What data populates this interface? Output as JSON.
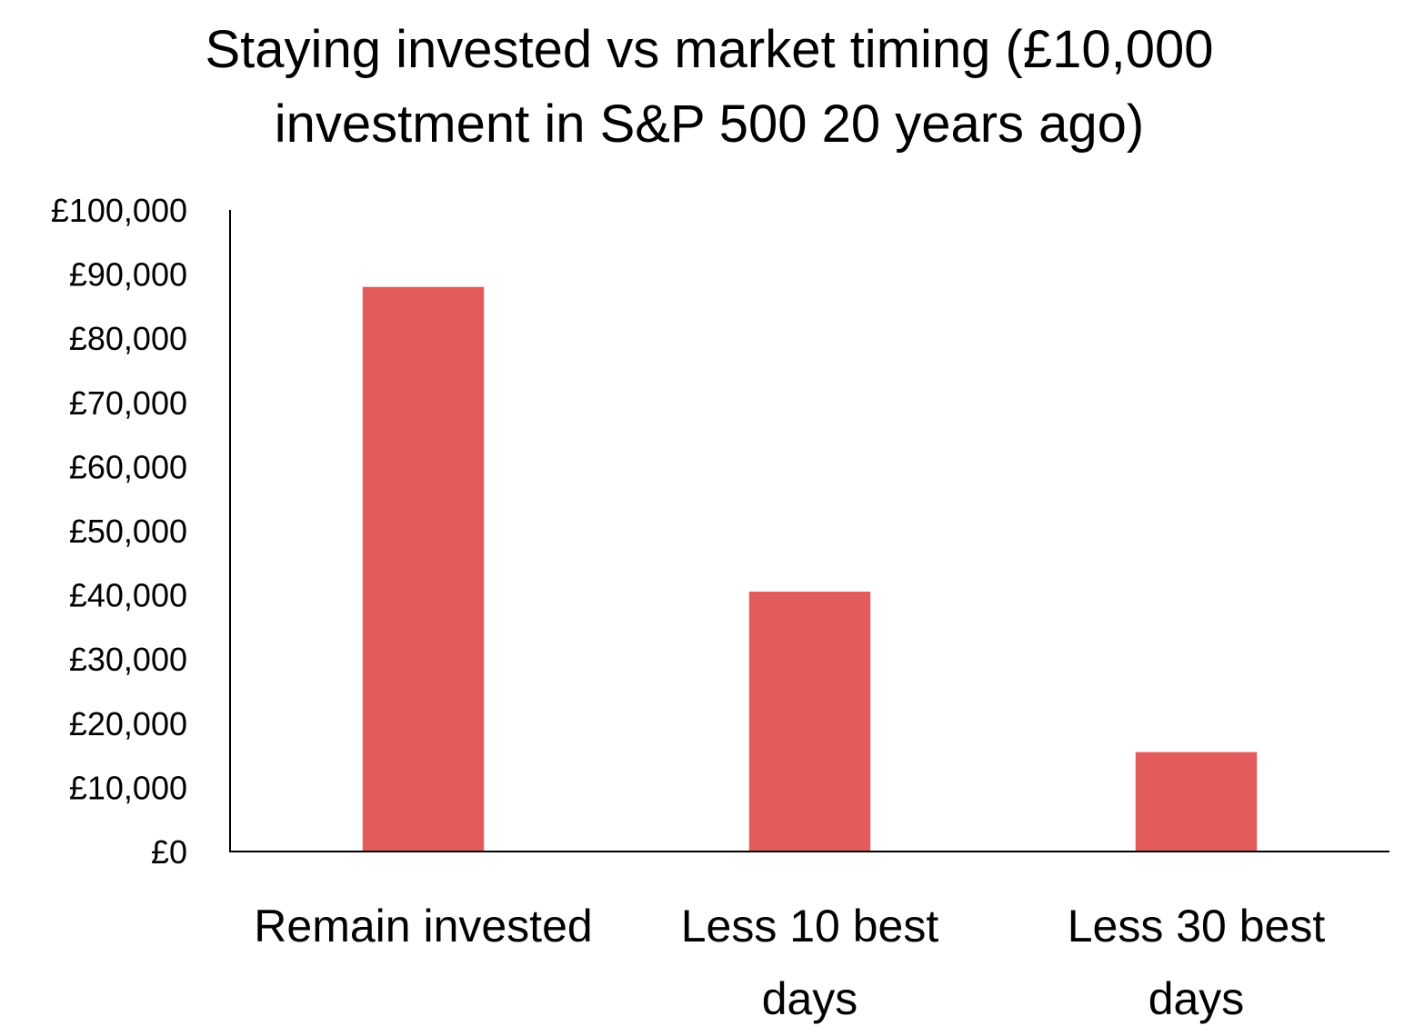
{
  "chart_data": {
    "type": "bar",
    "title": "Staying invested vs market timing (£10,000 investment in S&P 500 20 years ago)",
    "xlabel": "",
    "ylabel": "",
    "categories": [
      "Remain invested",
      "Less 10 best days",
      "Less 30 best days"
    ],
    "category_lines": [
      [
        "Remain invested"
      ],
      [
        "Less 10 best",
        "days"
      ],
      [
        "Less 30 best",
        "days"
      ]
    ],
    "values": [
      88000,
      40500,
      15500
    ],
    "ylim": [
      0,
      100000
    ],
    "yticks": [
      0,
      10000,
      20000,
      30000,
      40000,
      50000,
      60000,
      70000,
      80000,
      90000,
      100000
    ],
    "ytick_labels": [
      "£0",
      "£10,000",
      "£20,000",
      "£30,000",
      "£40,000",
      "£50,000",
      "£60,000",
      "£70,000",
      "£80,000",
      "£90,000",
      "£100,000"
    ],
    "bar_color": "#E35B5B",
    "axis_color": "#000000",
    "grid": false,
    "legend": "none"
  }
}
